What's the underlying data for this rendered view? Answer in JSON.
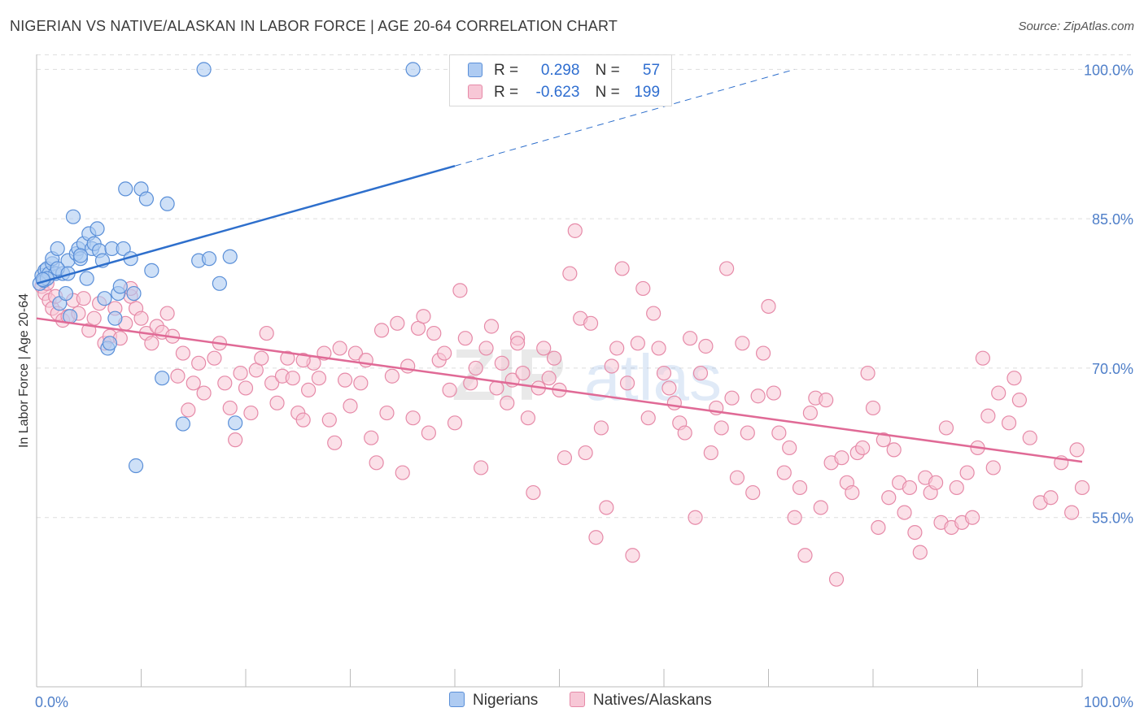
{
  "title": "NIGERIAN VS NATIVE/ALASKAN IN LABOR FORCE | AGE 20-64 CORRELATION CHART",
  "source": "Source: ZipAtlas.com",
  "legend": {
    "rows": [
      {
        "r_label": "R =",
        "r_value": "0.298",
        "n_label": "N =",
        "n_value": "57"
      },
      {
        "r_label": "R =",
        "r_value": "-0.623",
        "n_label": "N =",
        "n_value": "199"
      }
    ]
  },
  "bottom_legend": {
    "series1": "Nigerians",
    "series2": "Natives/Alaskans"
  },
  "colors": {
    "nigerian_fill": "#aecbf2",
    "nigerian_stroke": "#5a8fd8",
    "nigerian_line": "#2e6fcc",
    "native_fill": "#f7c7d6",
    "native_stroke": "#e68aa8",
    "native_line": "#e06a96",
    "grid": "#dddddd",
    "tick_label": "#4f7fc9"
  },
  "chart_data": {
    "type": "scatter",
    "title": "NIGERIAN VS NATIVE/ALASKAN IN LABOR FORCE | AGE 20-64 CORRELATION CHART",
    "xlabel": "",
    "ylabel": "In Labor Force | Age 20-64",
    "xlim": [
      0,
      100
    ],
    "ylim": [
      38,
      101.5
    ],
    "x_tick_labels": [
      "0.0%",
      "100.0%"
    ],
    "y_ticks": [
      55,
      70,
      85,
      100
    ],
    "y_tick_labels": [
      "55.0%",
      "70.0%",
      "85.0%",
      "100.0%"
    ],
    "series": [
      {
        "name": "Nigerians",
        "r": 0.298,
        "n": 57,
        "trend": {
          "x0": 0,
          "y0": 78.5,
          "x1": 40,
          "y1": 90.3,
          "dash_x1": 72.5,
          "dash_y1": 100.0
        },
        "points": [
          [
            0.3,
            78.5
          ],
          [
            0.5,
            79.3
          ],
          [
            0.7,
            78.8
          ],
          [
            0.8,
            79.8
          ],
          [
            1.0,
            80.0
          ],
          [
            1.2,
            79.5
          ],
          [
            1.5,
            80.5
          ],
          [
            1.5,
            81.0
          ],
          [
            1.8,
            79.5
          ],
          [
            2.0,
            82.0
          ],
          [
            2.2,
            76.5
          ],
          [
            2.5,
            79.5
          ],
          [
            2.8,
            77.5
          ],
          [
            3.0,
            80.8
          ],
          [
            3.2,
            75.2
          ],
          [
            3.5,
            85.2
          ],
          [
            3.8,
            81.5
          ],
          [
            4.0,
            82.0
          ],
          [
            4.2,
            81.0
          ],
          [
            4.5,
            82.5
          ],
          [
            4.8,
            79.0
          ],
          [
            5.0,
            83.5
          ],
          [
            5.3,
            82.0
          ],
          [
            5.5,
            82.5
          ],
          [
            5.8,
            84.0
          ],
          [
            6.0,
            81.8
          ],
          [
            6.3,
            80.8
          ],
          [
            6.5,
            77.0
          ],
          [
            6.8,
            72.0
          ],
          [
            7.0,
            72.5
          ],
          [
            7.2,
            82.0
          ],
          [
            7.5,
            75.0
          ],
          [
            7.8,
            77.5
          ],
          [
            8.0,
            78.2
          ],
          [
            8.3,
            82.0
          ],
          [
            8.5,
            88.0
          ],
          [
            9.0,
            81.0
          ],
          [
            9.3,
            77.5
          ],
          [
            9.5,
            60.2
          ],
          [
            10.0,
            88.0
          ],
          [
            10.5,
            87.0
          ],
          [
            11.0,
            79.8
          ],
          [
            12.0,
            69.0
          ],
          [
            12.5,
            86.5
          ],
          [
            14.0,
            64.4
          ],
          [
            15.5,
            80.8
          ],
          [
            16.5,
            81.0
          ],
          [
            17.5,
            78.5
          ],
          [
            18.5,
            81.2
          ],
          [
            19.0,
            64.5
          ],
          [
            16.0,
            100.0
          ],
          [
            36.0,
            100.0
          ],
          [
            4.2,
            81.3
          ],
          [
            1.0,
            79.0
          ],
          [
            2.0,
            80.0
          ],
          [
            3.0,
            79.5
          ],
          [
            0.6,
            78.9
          ]
        ]
      },
      {
        "name": "Natives/Alaskans",
        "r": -0.623,
        "n": 199,
        "trend": {
          "x0": 0,
          "y0": 75.0,
          "x1": 100,
          "y1": 60.6
        },
        "points": [
          [
            0.5,
            78.2
          ],
          [
            0.8,
            77.5
          ],
          [
            1.0,
            78.5
          ],
          [
            1.2,
            76.8
          ],
          [
            1.5,
            76.0
          ],
          [
            1.8,
            77.2
          ],
          [
            2.0,
            75.5
          ],
          [
            2.5,
            74.8
          ],
          [
            3.0,
            75.2
          ],
          [
            3.5,
            76.8
          ],
          [
            4.0,
            75.5
          ],
          [
            4.5,
            77.0
          ],
          [
            5.0,
            73.8
          ],
          [
            5.5,
            75.0
          ],
          [
            6.0,
            76.5
          ],
          [
            6.5,
            72.5
          ],
          [
            7.0,
            73.2
          ],
          [
            7.5,
            76.0
          ],
          [
            8.0,
            73.0
          ],
          [
            8.5,
            74.5
          ],
          [
            9.0,
            77.2
          ],
          [
            9.5,
            76.0
          ],
          [
            10.0,
            75.0
          ],
          [
            10.5,
            73.5
          ],
          [
            11.0,
            72.5
          ],
          [
            11.5,
            74.2
          ],
          [
            12.0,
            73.6
          ],
          [
            12.5,
            75.5
          ],
          [
            13.0,
            73.2
          ],
          [
            13.5,
            69.2
          ],
          [
            14.0,
            71.5
          ],
          [
            14.5,
            65.8
          ],
          [
            15.0,
            68.5
          ],
          [
            15.5,
            70.5
          ],
          [
            16.0,
            67.5
          ],
          [
            17.0,
            71.0
          ],
          [
            17.5,
            72.5
          ],
          [
            18.0,
            68.5
          ],
          [
            18.5,
            66.0
          ],
          [
            19.0,
            62.8
          ],
          [
            19.5,
            69.5
          ],
          [
            20.0,
            68.0
          ],
          [
            20.5,
            65.5
          ],
          [
            21.0,
            69.8
          ],
          [
            21.5,
            71.0
          ],
          [
            22.0,
            73.5
          ],
          [
            22.5,
            68.5
          ],
          [
            23.0,
            66.5
          ],
          [
            23.5,
            69.2
          ],
          [
            24.0,
            71.0
          ],
          [
            24.5,
            69.0
          ],
          [
            25.0,
            65.5
          ],
          [
            25.5,
            64.8
          ],
          [
            26.0,
            67.8
          ],
          [
            26.5,
            70.5
          ],
          [
            27.0,
            69.0
          ],
          [
            27.5,
            71.5
          ],
          [
            28.0,
            64.8
          ],
          [
            28.5,
            62.5
          ],
          [
            29.0,
            72.0
          ],
          [
            29.5,
            68.8
          ],
          [
            30.0,
            66.2
          ],
          [
            30.5,
            71.5
          ],
          [
            31.0,
            68.5
          ],
          [
            31.5,
            70.8
          ],
          [
            32.0,
            63.0
          ],
          [
            32.5,
            60.5
          ],
          [
            33.0,
            73.8
          ],
          [
            33.5,
            65.5
          ],
          [
            34.0,
            69.2
          ],
          [
            34.5,
            74.5
          ],
          [
            35.0,
            59.5
          ],
          [
            35.5,
            70.2
          ],
          [
            36.0,
            65.0
          ],
          [
            36.5,
            74.0
          ],
          [
            37.0,
            75.2
          ],
          [
            37.5,
            63.5
          ],
          [
            38.0,
            73.5
          ],
          [
            38.5,
            70.8
          ],
          [
            39.0,
            71.5
          ],
          [
            39.5,
            67.8
          ],
          [
            40.0,
            64.5
          ],
          [
            40.5,
            77.8
          ],
          [
            41.0,
            73.0
          ],
          [
            41.5,
            68.5
          ],
          [
            42.0,
            70.0
          ],
          [
            42.5,
            60.0
          ],
          [
            43.0,
            72.0
          ],
          [
            43.5,
            74.2
          ],
          [
            44.0,
            68.0
          ],
          [
            44.5,
            70.5
          ],
          [
            45.0,
            66.5
          ],
          [
            45.5,
            68.8
          ],
          [
            46.0,
            73.0
          ],
          [
            46.5,
            69.5
          ],
          [
            47.0,
            65.0
          ],
          [
            47.5,
            57.5
          ],
          [
            48.0,
            68.0
          ],
          [
            48.5,
            72.0
          ],
          [
            49.0,
            69.0
          ],
          [
            49.5,
            71.0
          ],
          [
            50.0,
            67.8
          ],
          [
            50.5,
            61.0
          ],
          [
            51.0,
            79.5
          ],
          [
            51.5,
            83.8
          ],
          [
            52.0,
            75.0
          ],
          [
            52.5,
            61.5
          ],
          [
            53.0,
            74.5
          ],
          [
            53.5,
            53.0
          ],
          [
            54.0,
            64.0
          ],
          [
            54.5,
            56.0
          ],
          [
            55.0,
            70.2
          ],
          [
            55.5,
            72.0
          ],
          [
            56.0,
            80.0
          ],
          [
            56.5,
            68.5
          ],
          [
            57.0,
            51.2
          ],
          [
            57.5,
            72.5
          ],
          [
            58.0,
            78.0
          ],
          [
            58.5,
            65.0
          ],
          [
            59.0,
            75.5
          ],
          [
            59.5,
            72.0
          ],
          [
            60.0,
            69.5
          ],
          [
            60.5,
            68.0
          ],
          [
            61.0,
            66.5
          ],
          [
            61.5,
            64.5
          ],
          [
            62.0,
            63.5
          ],
          [
            62.5,
            73.0
          ],
          [
            63.0,
            55.0
          ],
          [
            63.5,
            69.5
          ],
          [
            64.0,
            72.2
          ],
          [
            64.5,
            61.5
          ],
          [
            65.0,
            66.0
          ],
          [
            65.5,
            64.0
          ],
          [
            66.0,
            80.0
          ],
          [
            66.5,
            67.0
          ],
          [
            67.0,
            59.0
          ],
          [
            67.5,
            72.5
          ],
          [
            68.0,
            63.5
          ],
          [
            68.5,
            57.5
          ],
          [
            69.0,
            67.2
          ],
          [
            69.5,
            71.5
          ],
          [
            70.0,
            76.2
          ],
          [
            70.5,
            67.5
          ],
          [
            71.0,
            63.5
          ],
          [
            71.5,
            59.5
          ],
          [
            72.0,
            62.0
          ],
          [
            72.5,
            55.0
          ],
          [
            73.0,
            58.0
          ],
          [
            73.5,
            51.2
          ],
          [
            74.0,
            65.5
          ],
          [
            74.5,
            67.0
          ],
          [
            75.0,
            56.0
          ],
          [
            75.5,
            66.8
          ],
          [
            76.0,
            60.5
          ],
          [
            76.5,
            48.8
          ],
          [
            77.0,
            61.0
          ],
          [
            77.5,
            58.5
          ],
          [
            78.0,
            57.5
          ],
          [
            78.5,
            61.5
          ],
          [
            79.0,
            62.0
          ],
          [
            79.5,
            69.5
          ],
          [
            80.0,
            66.0
          ],
          [
            80.5,
            54.0
          ],
          [
            81.0,
            62.8
          ],
          [
            81.5,
            57.0
          ],
          [
            82.0,
            61.8
          ],
          [
            82.5,
            58.5
          ],
          [
            83.0,
            55.5
          ],
          [
            83.5,
            58.0
          ],
          [
            84.0,
            53.5
          ],
          [
            84.5,
            51.5
          ],
          [
            85.0,
            59.0
          ],
          [
            85.5,
            57.5
          ],
          [
            86.0,
            58.5
          ],
          [
            86.5,
            54.5
          ],
          [
            87.0,
            64.0
          ],
          [
            87.5,
            54.0
          ],
          [
            88.0,
            58.0
          ],
          [
            88.5,
            54.5
          ],
          [
            89.0,
            59.5
          ],
          [
            89.5,
            55.0
          ],
          [
            90.0,
            62.0
          ],
          [
            90.5,
            71.0
          ],
          [
            91.0,
            65.2
          ],
          [
            91.5,
            60.0
          ],
          [
            92.0,
            67.5
          ],
          [
            93.0,
            64.5
          ],
          [
            93.5,
            69.0
          ],
          [
            94.0,
            66.8
          ],
          [
            95.0,
            63.0
          ],
          [
            96.0,
            56.5
          ],
          [
            97.0,
            57.0
          ],
          [
            98.0,
            60.5
          ],
          [
            99.0,
            55.5
          ],
          [
            99.5,
            61.8
          ],
          [
            100.0,
            58.0
          ],
          [
            46.0,
            72.5
          ],
          [
            25.5,
            70.8
          ],
          [
            9.0,
            78.0
          ]
        ]
      }
    ]
  }
}
